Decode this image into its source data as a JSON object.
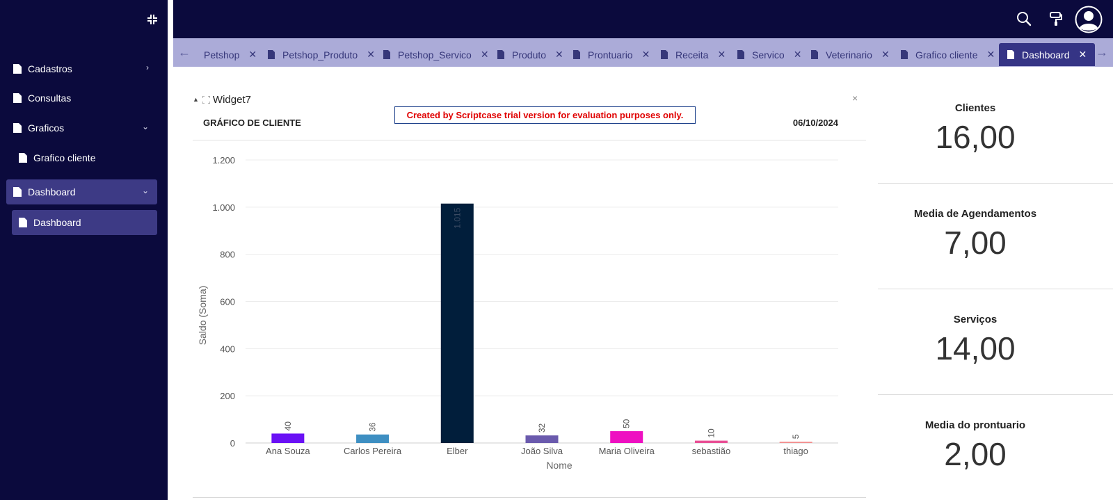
{
  "sidebar": {
    "collapse_icon": "collapse-arrows-icon",
    "items": [
      {
        "label": "Cadastros",
        "chevron": "›"
      },
      {
        "label": "Consultas"
      },
      {
        "label": "Graficos",
        "chevron": "⌄"
      },
      {
        "label": "Grafico cliente"
      },
      {
        "label": "Dashboard",
        "chevron": "⌄"
      },
      {
        "label": "Dashboard"
      }
    ]
  },
  "topbar": {
    "icons": [
      "search-icon",
      "paint-roller-icon",
      "user-avatar-icon"
    ]
  },
  "tabs": {
    "prev": "←",
    "next": "→",
    "items": [
      {
        "label": "Petshop",
        "close": "✕"
      },
      {
        "label": "Petshop_Produto",
        "close": "✕"
      },
      {
        "label": "Petshop_Servico",
        "close": "✕"
      },
      {
        "label": "Produto",
        "close": "✕"
      },
      {
        "label": "Prontuario",
        "close": "✕"
      },
      {
        "label": "Receita",
        "close": "✕"
      },
      {
        "label": "Servico",
        "close": "✕"
      },
      {
        "label": "Veterinario",
        "close": "✕"
      },
      {
        "label": "Grafico cliente",
        "close": "✕"
      },
      {
        "label": "Dashboard",
        "close": "✕"
      }
    ]
  },
  "widget": {
    "title": "Widget7",
    "close": "×",
    "trial_notice": "Created by Scriptcase trial version for evaluation purposes only.",
    "chart_title": "GRÁFICO DE CLIENTE",
    "date": "06/10/2024"
  },
  "chart_data": {
    "type": "bar",
    "categories": [
      "Ana Souza",
      "Carlos Pereira",
      "Elber",
      "João Silva",
      "Maria Oliveira",
      "sebastião",
      "thiago"
    ],
    "values": [
      40,
      36,
      1015,
      32,
      50,
      10,
      5
    ],
    "value_labels": [
      "40",
      "36",
      "1.015",
      "32",
      "50",
      "10",
      "5"
    ],
    "colors": [
      "#6a11f5",
      "#3e8fc2",
      "#011e3b",
      "#6a5aad",
      "#ee10c1",
      "#e84f95",
      "#f28c8c"
    ],
    "xlabel": "Nome",
    "ylabel": "Saldo (Soma)",
    "ylim": [
      0,
      1200
    ],
    "yticks": [
      0,
      200,
      400,
      600,
      800,
      1000,
      1200
    ],
    "ytick_labels": [
      "0",
      "200",
      "400",
      "600",
      "800",
      "1.000",
      "1.200"
    ],
    "grid": true
  },
  "kpis": [
    {
      "label": "Clientes",
      "value": "16,00"
    },
    {
      "label": "Media de Agendamentos",
      "value": "7,00"
    },
    {
      "label": "Serviços",
      "value": "14,00"
    },
    {
      "label": "Media do prontuario",
      "value": "2,00"
    }
  ]
}
